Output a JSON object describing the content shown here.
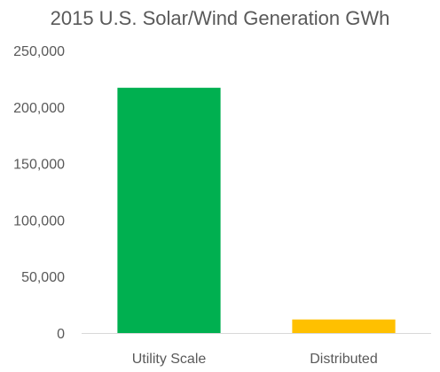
{
  "chart_data": {
    "type": "bar",
    "title": "2015 U.S. Solar/Wind Generation GWh",
    "categories": [
      "Utility Scale",
      "Distributed"
    ],
    "values": [
      217000,
      12000
    ],
    "colors": [
      "#00B050",
      "#FFC000"
    ],
    "ylim": [
      0,
      250000
    ],
    "yticks": [
      0,
      50000,
      100000,
      150000,
      200000,
      250000
    ],
    "ytick_labels": [
      "0",
      "50,000",
      "100,000",
      "150,000",
      "200,000",
      "250,000"
    ],
    "xlabel": "",
    "ylabel": "",
    "grid": false,
    "legend": "none"
  }
}
